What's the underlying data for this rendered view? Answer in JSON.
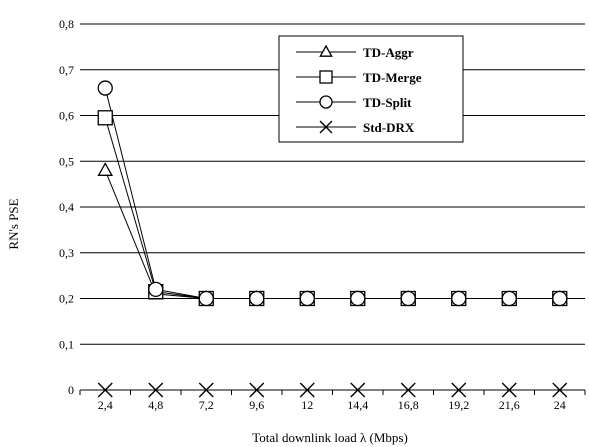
{
  "chart_data": {
    "type": "line",
    "categories": [
      "2,4",
      "4,8",
      "7,2",
      "9,6",
      "12",
      "14,4",
      "16,8",
      "19,2",
      "21,6",
      "24"
    ],
    "xlabel": "Total downlink  load λ (Mbps)",
    "ylabel": "RN's PSE",
    "ylim": [
      0,
      0.8
    ],
    "yticks": [
      0,
      0.1,
      0.2,
      0.3,
      0.4,
      0.5,
      0.6,
      0.7,
      0.8
    ],
    "ytick_labels": [
      "0",
      "0,1",
      "0,2",
      "0,3",
      "0,4",
      "0,5",
      "0,6",
      "0,7",
      "0,8"
    ],
    "grid": "horizontal",
    "legend_position": "top-right",
    "series": [
      {
        "name": "TD-Aggr",
        "marker": "triangle",
        "values": [
          0.48,
          0.21,
          0.2,
          0.2,
          0.2,
          0.2,
          0.2,
          0.2,
          0.2,
          0.2
        ]
      },
      {
        "name": "TD-Merge",
        "marker": "square",
        "values": [
          0.595,
          0.215,
          0.2,
          0.2,
          0.2,
          0.2,
          0.2,
          0.2,
          0.2,
          0.2
        ]
      },
      {
        "name": "TD-Split",
        "marker": "circle",
        "values": [
          0.66,
          0.22,
          0.2,
          0.2,
          0.2,
          0.2,
          0.2,
          0.2,
          0.2,
          0.2
        ]
      },
      {
        "name": "Std-DRX",
        "marker": "x",
        "values": [
          0,
          0,
          0,
          0,
          0,
          0,
          0,
          0,
          0,
          0
        ]
      }
    ],
    "colors": {
      "line": "#000000",
      "background": "#ffffff",
      "marker_fill": "#ffffff"
    }
  }
}
